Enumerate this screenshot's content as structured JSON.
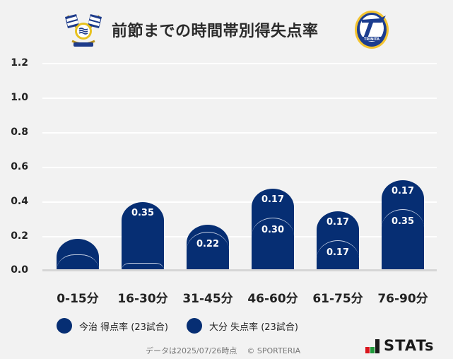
{
  "header": {
    "title": "前節までの時間帯別得失点率",
    "home_logo": "imabari-fc-crest-icon",
    "away_logo": "oita-trinita-crest-icon"
  },
  "colors": {
    "bar": "#062e73",
    "background": "#f2f2f2",
    "gridline": "#ffffff",
    "baseline": "#d6d6d6"
  },
  "chart_data": {
    "type": "bar",
    "stacked": true,
    "title": "前節までの時間帯別得失点率",
    "xlabel": "",
    "ylabel": "",
    "ylim": [
      0,
      1.2
    ],
    "yticks": [
      "0.0",
      "0.2",
      "0.4",
      "0.6",
      "0.8",
      "1.0",
      "1.2"
    ],
    "grid": true,
    "legend_position": "bottom",
    "categories": [
      "0-15分",
      "16-30分",
      "31-45分",
      "46-60分",
      "61-75分",
      "76-90分"
    ],
    "series": [
      {
        "name": "今治 得点率 (23試合)",
        "values": [
          0.09,
          0.04,
          0.22,
          0.3,
          0.17,
          0.35
        ],
        "labels": [
          "",
          "",
          "0.22",
          "0.30",
          "0.17",
          "0.35"
        ]
      },
      {
        "name": "大分 失点率 (23試合)",
        "values": [
          0.09,
          0.35,
          0.04,
          0.17,
          0.17,
          0.17
        ],
        "labels": [
          "",
          "0.35",
          "",
          "0.17",
          "0.17",
          "0.17"
        ]
      }
    ]
  },
  "legend": {
    "items": [
      {
        "label": "今治 得点率 (23試合)"
      },
      {
        "label": "大分 失点率 (23試合)"
      }
    ]
  },
  "footer": {
    "data_date": "データは2025/07/26時点",
    "copyright": "© SPORTERIA",
    "brand": "STATs"
  }
}
